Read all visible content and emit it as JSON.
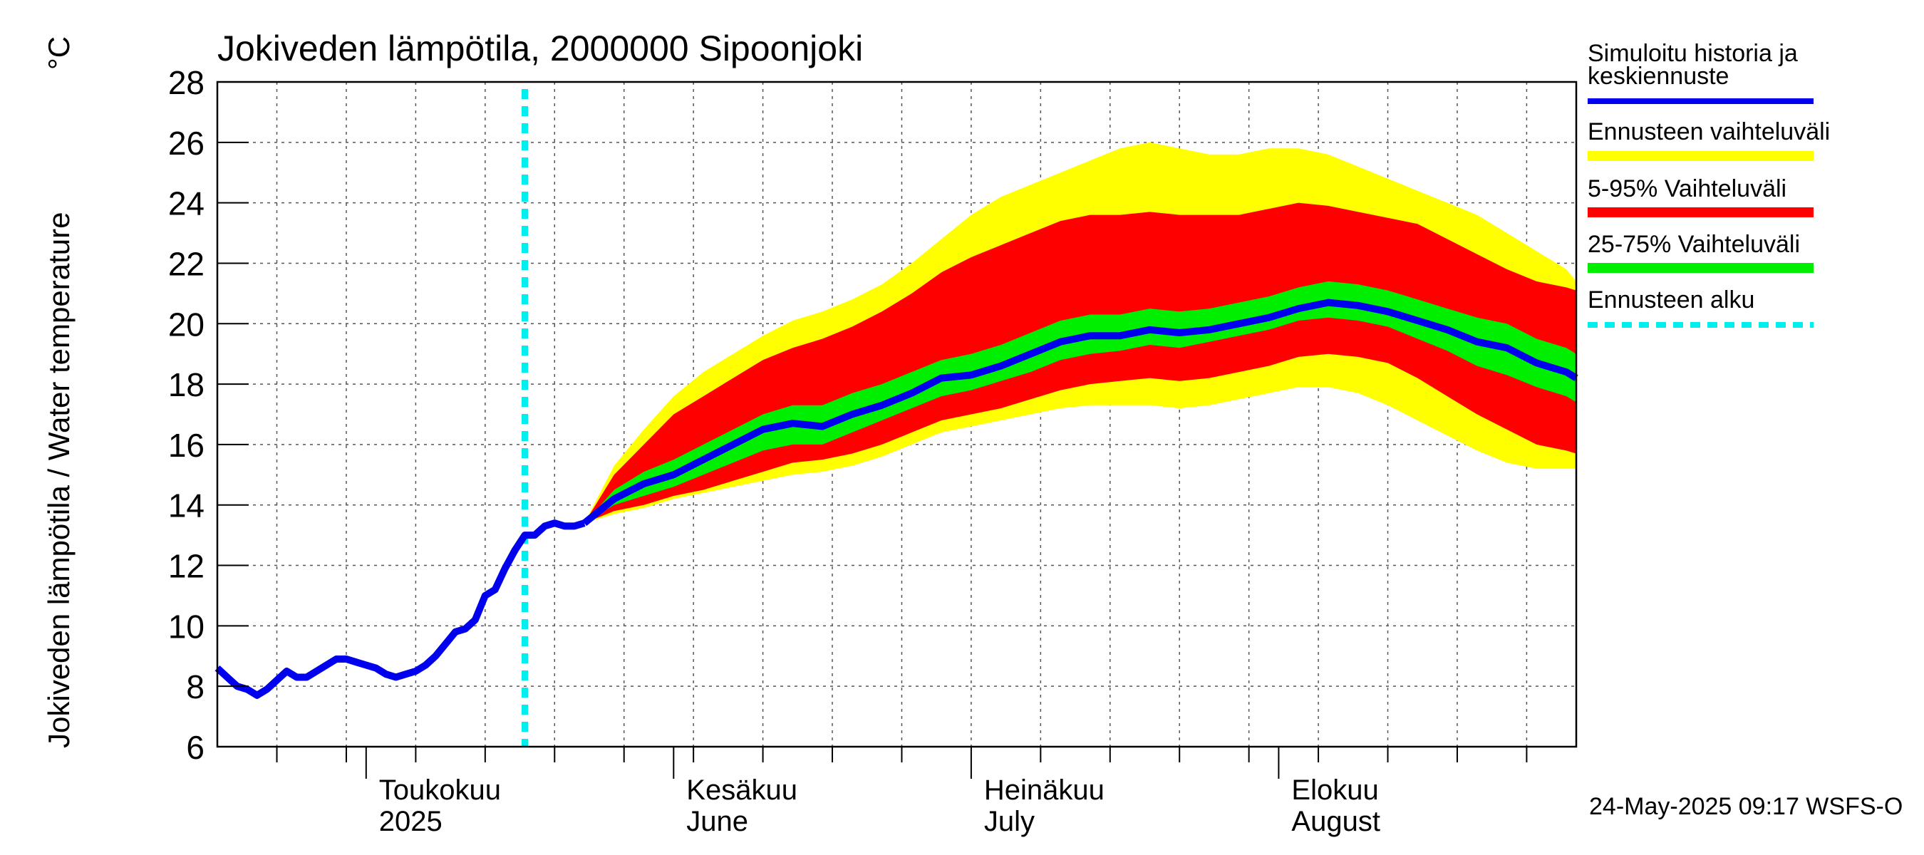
{
  "chart_data": {
    "type": "area",
    "title": "Jokiveden lämpötila, 2000000 Sipoonjoki",
    "ylabel": "Jokiveden lämpötila / Water temperature",
    "yunit": "°C",
    "ylim": [
      6,
      28
    ],
    "yticks": [
      6,
      8,
      10,
      12,
      14,
      16,
      18,
      20,
      22,
      24,
      26,
      28
    ],
    "xlim": [
      "2025-04-16",
      "2025-08-31"
    ],
    "grid": true,
    "month_labels": [
      {
        "date": "2025-05-01",
        "fi": "Toukokuu",
        "en": "2025"
      },
      {
        "date": "2025-06-01",
        "fi": "Kesäkuu",
        "en": "June"
      },
      {
        "date": "2025-07-01",
        "fi": "Heinäkuu",
        "en": "July"
      },
      {
        "date": "2025-08-01",
        "fi": "Elokuu",
        "en": "August"
      }
    ],
    "forecast_start": "2025-05-17",
    "legend": {
      "placement": "right",
      "entries": [
        {
          "label_lines": [
            "Simuloitu historia ja",
            "keskiennuste"
          ],
          "color": "#0000ee",
          "style": "line"
        },
        {
          "label_lines": [
            "Ennusteen vaihteluväli"
          ],
          "color": "#ffff00",
          "style": "band"
        },
        {
          "label_lines": [
            "5-95% Vaihteluväli"
          ],
          "color": "#ff0000",
          "style": "band"
        },
        {
          "label_lines": [
            "25-75% Vaihteluväli"
          ],
          "color": "#00ee00",
          "style": "band"
        },
        {
          "label_lines": [
            "Ennusteen alku"
          ],
          "color": "#00eeee",
          "style": "dashed"
        }
      ]
    },
    "history": {
      "name": "Simuloitu historia ja keskiennuste",
      "points": [
        [
          "2025-04-16",
          8.6
        ],
        [
          "2025-04-17",
          8.3
        ],
        [
          "2025-04-18",
          8.0
        ],
        [
          "2025-04-19",
          7.9
        ],
        [
          "2025-04-20",
          7.7
        ],
        [
          "2025-04-21",
          7.9
        ],
        [
          "2025-04-22",
          8.2
        ],
        [
          "2025-04-23",
          8.5
        ],
        [
          "2025-04-24",
          8.3
        ],
        [
          "2025-04-25",
          8.3
        ],
        [
          "2025-04-26",
          8.5
        ],
        [
          "2025-04-27",
          8.7
        ],
        [
          "2025-04-28",
          8.9
        ],
        [
          "2025-04-29",
          8.9
        ],
        [
          "2025-04-30",
          8.8
        ],
        [
          "2025-05-01",
          8.7
        ],
        [
          "2025-05-02",
          8.6
        ],
        [
          "2025-05-03",
          8.4
        ],
        [
          "2025-05-04",
          8.3
        ],
        [
          "2025-05-05",
          8.4
        ],
        [
          "2025-05-06",
          8.5
        ],
        [
          "2025-05-07",
          8.7
        ],
        [
          "2025-05-08",
          9.0
        ],
        [
          "2025-05-09",
          9.4
        ],
        [
          "2025-05-10",
          9.8
        ],
        [
          "2025-05-11",
          9.9
        ],
        [
          "2025-05-12",
          10.2
        ],
        [
          "2025-05-13",
          11.0
        ],
        [
          "2025-05-14",
          11.2
        ],
        [
          "2025-05-15",
          11.9
        ],
        [
          "2025-05-16",
          12.5
        ],
        [
          "2025-05-17",
          13.0
        ],
        [
          "2025-05-18",
          13.0
        ],
        [
          "2025-05-19",
          13.3
        ],
        [
          "2025-05-20",
          13.4
        ],
        [
          "2025-05-21",
          13.3
        ],
        [
          "2025-05-22",
          13.3
        ],
        [
          "2025-05-23",
          13.4
        ]
      ]
    },
    "forecast": {
      "dates": [
        "2025-05-23",
        "2025-05-26",
        "2025-05-29",
        "2025-06-01",
        "2025-06-04",
        "2025-06-07",
        "2025-06-10",
        "2025-06-13",
        "2025-06-16",
        "2025-06-19",
        "2025-06-22",
        "2025-06-25",
        "2025-06-28",
        "2025-07-01",
        "2025-07-04",
        "2025-07-07",
        "2025-07-10",
        "2025-07-13",
        "2025-07-16",
        "2025-07-19",
        "2025-07-22",
        "2025-07-25",
        "2025-07-28",
        "2025-07-31",
        "2025-08-03",
        "2025-08-06",
        "2025-08-09",
        "2025-08-12",
        "2025-08-15",
        "2025-08-18",
        "2025-08-21",
        "2025-08-24",
        "2025-08-27",
        "2025-08-30",
        "2025-08-31"
      ],
      "median": [
        13.4,
        14.2,
        14.7,
        15.0,
        15.5,
        16.0,
        16.5,
        16.7,
        16.6,
        17.0,
        17.3,
        17.7,
        18.2,
        18.3,
        18.6,
        19.0,
        19.4,
        19.6,
        19.6,
        19.8,
        19.7,
        19.8,
        20.0,
        20.2,
        20.5,
        20.7,
        20.6,
        20.4,
        20.1,
        19.8,
        19.4,
        19.2,
        18.7,
        18.4,
        18.2
      ],
      "p25": [
        13.4,
        14.0,
        14.3,
        14.6,
        15.0,
        15.4,
        15.8,
        16.0,
        16.0,
        16.4,
        16.8,
        17.2,
        17.6,
        17.8,
        18.1,
        18.4,
        18.8,
        19.0,
        19.1,
        19.3,
        19.2,
        19.4,
        19.6,
        19.8,
        20.1,
        20.2,
        20.1,
        19.9,
        19.5,
        19.1,
        18.6,
        18.3,
        17.9,
        17.6,
        17.4
      ],
      "p75": [
        13.4,
        14.5,
        15.1,
        15.5,
        16.0,
        16.5,
        17.0,
        17.3,
        17.3,
        17.7,
        18.0,
        18.4,
        18.8,
        19.0,
        19.3,
        19.7,
        20.1,
        20.3,
        20.3,
        20.5,
        20.4,
        20.5,
        20.7,
        20.9,
        21.2,
        21.4,
        21.3,
        21.1,
        20.8,
        20.5,
        20.2,
        20.0,
        19.5,
        19.2,
        19.0
      ],
      "p05": [
        13.4,
        13.8,
        14.0,
        14.3,
        14.5,
        14.8,
        15.1,
        15.4,
        15.5,
        15.7,
        16.0,
        16.4,
        16.8,
        17.0,
        17.2,
        17.5,
        17.8,
        18.0,
        18.1,
        18.2,
        18.1,
        18.2,
        18.4,
        18.6,
        18.9,
        19.0,
        18.9,
        18.7,
        18.2,
        17.6,
        17.0,
        16.5,
        16.0,
        15.8,
        15.7
      ],
      "p95": [
        13.4,
        15.0,
        16.0,
        17.0,
        17.6,
        18.2,
        18.8,
        19.2,
        19.5,
        19.9,
        20.4,
        21.0,
        21.7,
        22.2,
        22.6,
        23.0,
        23.4,
        23.6,
        23.6,
        23.7,
        23.6,
        23.6,
        23.6,
        23.8,
        24.0,
        23.9,
        23.7,
        23.5,
        23.3,
        22.8,
        22.3,
        21.8,
        21.4,
        21.2,
        21.1
      ],
      "min": [
        13.4,
        13.7,
        13.9,
        14.2,
        14.4,
        14.6,
        14.8,
        15.0,
        15.1,
        15.3,
        15.6,
        16.0,
        16.4,
        16.6,
        16.8,
        17.0,
        17.2,
        17.3,
        17.3,
        17.3,
        17.2,
        17.3,
        17.5,
        17.7,
        17.9,
        17.9,
        17.7,
        17.3,
        16.8,
        16.3,
        15.8,
        15.4,
        15.2,
        15.2,
        15.2
      ],
      "max": [
        13.4,
        15.3,
        16.5,
        17.6,
        18.4,
        19.0,
        19.6,
        20.1,
        20.4,
        20.8,
        21.3,
        22.0,
        22.8,
        23.6,
        24.2,
        24.6,
        25.0,
        25.4,
        25.8,
        26.0,
        25.8,
        25.6,
        25.6,
        25.8,
        25.8,
        25.6,
        25.2,
        24.8,
        24.4,
        24.0,
        23.6,
        23.0,
        22.4,
        21.8,
        21.4
      ]
    }
  },
  "footer": {
    "timestamp": "24-May-2025 09:17 WSFS-O"
  }
}
